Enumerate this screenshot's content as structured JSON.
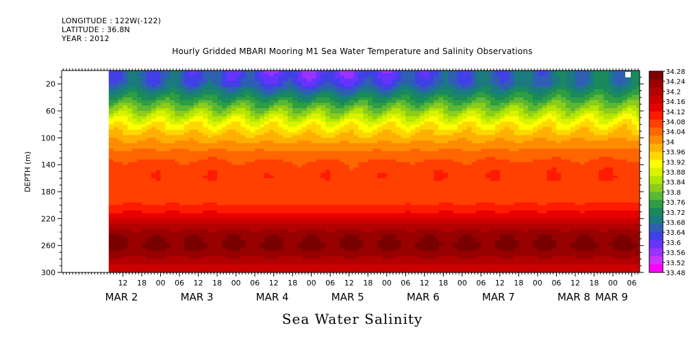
{
  "header": {
    "longitude": "LONGITUDE : 122W(-122)",
    "latitude": "LATITUDE : 36.8N",
    "year": "YEAR : 2012"
  },
  "chart_data": {
    "type": "heatmap",
    "title": "Hourly Gridded MBARI Mooring M1 Sea Water Temperature and Salinity Observations",
    "xlabel": "Sea Water Salinity",
    "ylabel": "DEPTH (m)",
    "y_axis": {
      "range": [
        0,
        300
      ],
      "inverted": true,
      "ticks": [
        20,
        60,
        100,
        140,
        180,
        220,
        260,
        300
      ],
      "tick_labels": [
        "20",
        "60",
        "100",
        "140",
        "180",
        "220",
        "260",
        "300"
      ]
    },
    "x_axis": {
      "range_hours": [
        0,
        174
      ],
      "hour_ticks": [
        {
          "h": 12,
          "label": "12"
        },
        {
          "h": 18,
          "label": "18"
        },
        {
          "h": 24,
          "label": "00"
        },
        {
          "h": 30,
          "label": "06"
        },
        {
          "h": 36,
          "label": "12"
        },
        {
          "h": 42,
          "label": "18"
        },
        {
          "h": 48,
          "label": "00"
        },
        {
          "h": 54,
          "label": "06"
        },
        {
          "h": 60,
          "label": "12"
        },
        {
          "h": 66,
          "label": "18"
        },
        {
          "h": 72,
          "label": "00"
        },
        {
          "h": 78,
          "label": "06"
        },
        {
          "h": 84,
          "label": "12"
        },
        {
          "h": 90,
          "label": "18"
        },
        {
          "h": 96,
          "label": "00"
        },
        {
          "h": 102,
          "label": "06"
        },
        {
          "h": 108,
          "label": "12"
        },
        {
          "h": 114,
          "label": "18"
        },
        {
          "h": 120,
          "label": "00"
        },
        {
          "h": 126,
          "label": "06"
        },
        {
          "h": 132,
          "label": "12"
        },
        {
          "h": 138,
          "label": "18"
        },
        {
          "h": 144,
          "label": "00"
        },
        {
          "h": 150,
          "label": "06"
        },
        {
          "h": 156,
          "label": "12"
        },
        {
          "h": 162,
          "label": "18"
        },
        {
          "h": 168,
          "label": "00"
        },
        {
          "h": 174,
          "label": "06"
        }
      ],
      "date_labels": [
        {
          "h": 12,
          "label": "MAR   2"
        },
        {
          "h": 36,
          "label": "MAR   3"
        },
        {
          "h": 60,
          "label": "MAR   4"
        },
        {
          "h": 84,
          "label": "MAR   5"
        },
        {
          "h": 108,
          "label": "MAR   6"
        },
        {
          "h": 132,
          "label": "MAR   7"
        },
        {
          "h": 156,
          "label": "MAR   8"
        },
        {
          "h": 168,
          "label": "MAR   9"
        }
      ],
      "data_start_hour": 7.5
    },
    "colorbar": {
      "labels": [
        "34.28",
        "34.24",
        "34.2",
        "34.16",
        "34.12",
        "34.08",
        "34.04",
        "34",
        "33.96",
        "33.92",
        "33.88",
        "33.84",
        "33.8",
        "33.76",
        "33.72",
        "33.68",
        "33.64",
        "33.6",
        "33.56",
        "33.52",
        "33.48"
      ],
      "colors": [
        "#7a0000",
        "#990000",
        "#b30000",
        "#cc0000",
        "#e60000",
        "#ff1a00",
        "#ff4000",
        "#ff6600",
        "#ff8c00",
        "#ffb000",
        "#ffd700",
        "#ffff00",
        "#d9f200",
        "#b3e600",
        "#8ccc1a",
        "#5cb833",
        "#2e9e40",
        "#1a8a5c",
        "#1a7a80",
        "#2e5fb3",
        "#4040e6",
        "#6633ff",
        "#9933ff",
        "#cc33ff",
        "#ff00ff"
      ]
    },
    "salinity_profile": {
      "depths": [
        5,
        20,
        40,
        60,
        80,
        100,
        120,
        140,
        160,
        180,
        200,
        220,
        240,
        260,
        280,
        300
      ],
      "values": [
        33.65,
        33.66,
        33.74,
        33.83,
        33.92,
        33.98,
        34.03,
        34.07,
        34.08,
        34.07,
        34.09,
        34.15,
        34.23,
        34.26,
        34.21,
        34.15
      ]
    }
  }
}
